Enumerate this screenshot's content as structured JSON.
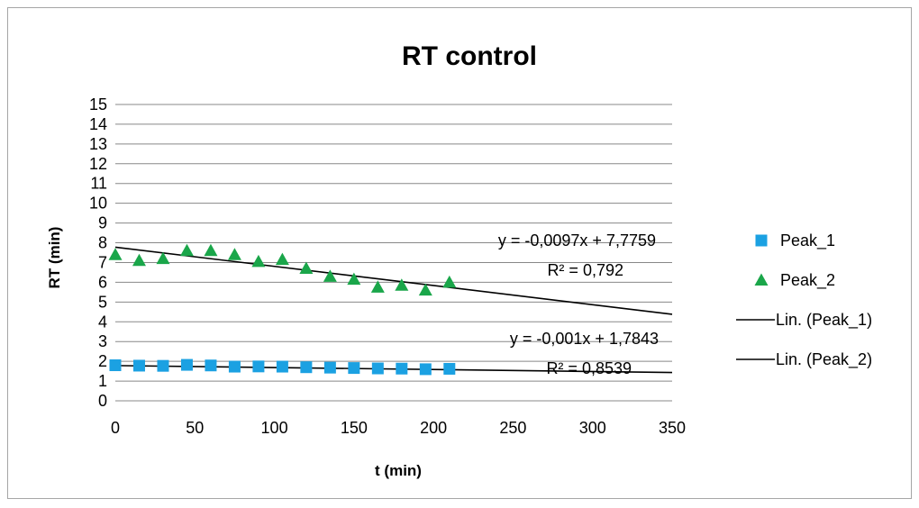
{
  "chart_data": {
    "type": "scatter",
    "title": "RT control",
    "xlabel": "t (min)",
    "ylabel": "RT (min)",
    "xlim": [
      0,
      350
    ],
    "ylim": [
      0,
      15
    ],
    "x_ticks": [
      0,
      50,
      100,
      150,
      200,
      250,
      300,
      350
    ],
    "y_ticks": [
      0,
      1,
      2,
      3,
      4,
      5,
      6,
      7,
      8,
      9,
      10,
      11,
      12,
      13,
      14,
      15
    ],
    "grid": "horizontal",
    "legend_position": "right",
    "series": [
      {
        "name": "Peak_1",
        "marker": "square",
        "color": "#1ba1e2",
        "x": [
          0,
          15,
          30,
          45,
          60,
          75,
          90,
          105,
          120,
          135,
          150,
          165,
          180,
          195,
          210
        ],
        "y": [
          1.8,
          1.78,
          1.77,
          1.82,
          1.79,
          1.73,
          1.74,
          1.73,
          1.7,
          1.68,
          1.66,
          1.64,
          1.63,
          1.6,
          1.62
        ]
      },
      {
        "name": "Peak_2",
        "marker": "triangle",
        "color": "#1aa64a",
        "x": [
          0,
          15,
          30,
          45,
          60,
          75,
          90,
          105,
          120,
          135,
          150,
          165,
          180,
          195,
          210
        ],
        "y": [
          7.4,
          7.1,
          7.2,
          7.6,
          7.6,
          7.4,
          7.05,
          7.15,
          6.7,
          6.3,
          6.15,
          5.75,
          5.85,
          5.6,
          6.0
        ]
      }
    ],
    "trendlines": [
      {
        "name": "Lin. (Peak_1)",
        "slope": -0.001,
        "intercept": 1.7843,
        "x_range": [
          0,
          350
        ],
        "equation": "y = -0,001x + 1,7843",
        "r2": "R² = 0,8539"
      },
      {
        "name": "Lin. (Peak_2)",
        "slope": -0.0097,
        "intercept": 7.7759,
        "x_range": [
          0,
          350
        ],
        "equation": "y = -0,0097x + 7,7759",
        "r2": "R² = 0,792"
      }
    ],
    "legend": [
      "Peak_1",
      "Peak_2",
      "Lin. (Peak_1)",
      "Lin. (Peak_2)"
    ]
  }
}
